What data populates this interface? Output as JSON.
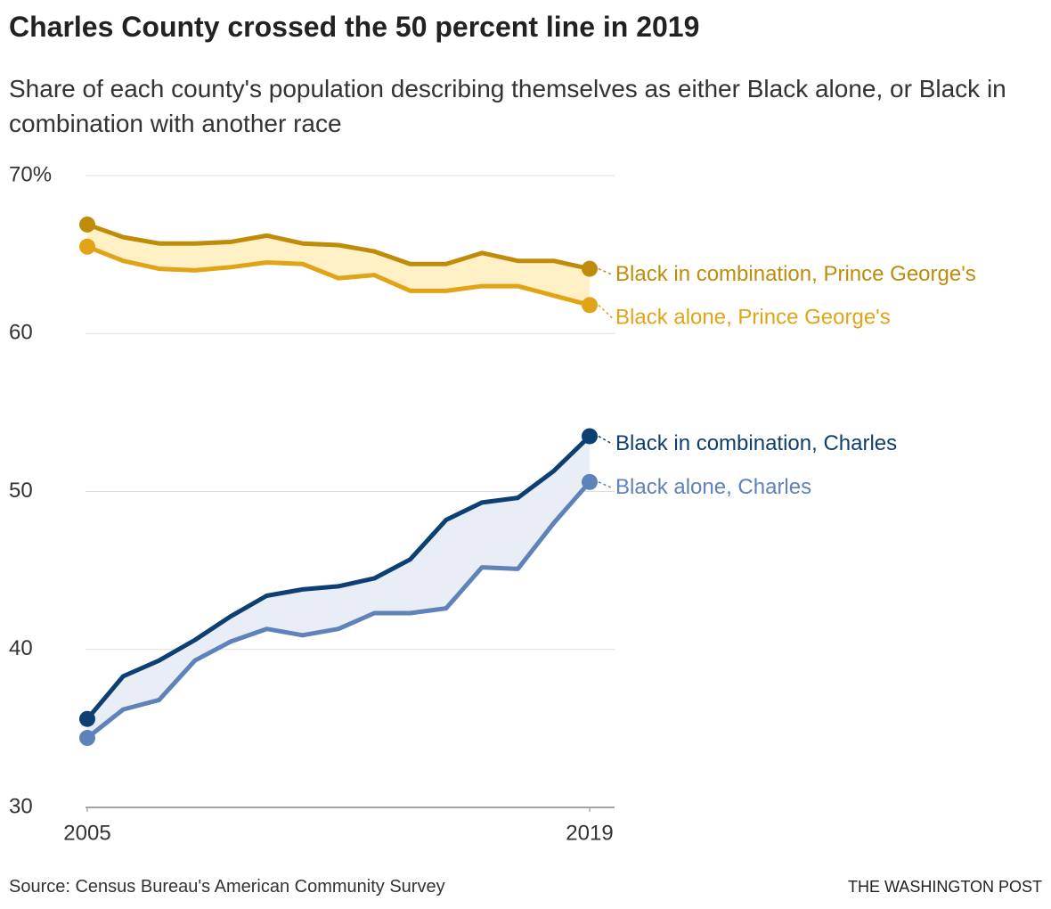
{
  "chart_data": {
    "type": "line",
    "title": "Charles County crossed the 50 percent line in 2019",
    "subtitle": "Share of each county's population describing themselves as either Black alone, or Black in combination with another race",
    "source": "Source: Census Bureau's American Community Survey",
    "credit": "THE WASHINGTON POST",
    "x": [
      2005,
      2006,
      2007,
      2008,
      2009,
      2010,
      2011,
      2012,
      2013,
      2014,
      2015,
      2016,
      2017,
      2018,
      2019
    ],
    "xlim": [
      2005,
      2019
    ],
    "xticks": [
      2005,
      2019
    ],
    "ylim": [
      30,
      70
    ],
    "yticks": [
      30,
      40,
      50,
      60,
      {
        "value": 70,
        "label": "70%"
      }
    ],
    "grid": true,
    "series": [
      {
        "name": "Black in combination, Prince George's",
        "color": "#bf8c0a",
        "values": [
          66.9,
          66.1,
          65.7,
          65.7,
          65.8,
          66.2,
          65.7,
          65.6,
          65.2,
          64.4,
          64.4,
          65.1,
          64.6,
          64.6,
          64.1
        ]
      },
      {
        "name": "Black alone, Prince George's",
        "color": "#e0a416",
        "values": [
          65.5,
          64.6,
          64.1,
          64.0,
          64.2,
          64.5,
          64.4,
          63.5,
          63.7,
          62.7,
          62.7,
          63.0,
          63.0,
          62.4,
          61.8
        ]
      },
      {
        "name": "Black in combination, Charles",
        "color": "#0e3f73",
        "values": [
          35.6,
          38.3,
          39.3,
          40.6,
          42.1,
          43.4,
          43.8,
          44.0,
          44.5,
          45.7,
          48.2,
          49.3,
          49.6,
          51.3,
          53.5
        ]
      },
      {
        "name": "Black alone, Charles",
        "color": "#5e82b9",
        "values": [
          34.4,
          36.2,
          36.8,
          39.3,
          40.5,
          41.3,
          40.9,
          41.3,
          42.3,
          42.3,
          42.6,
          45.2,
          45.1,
          48.0,
          50.6
        ]
      }
    ]
  }
}
